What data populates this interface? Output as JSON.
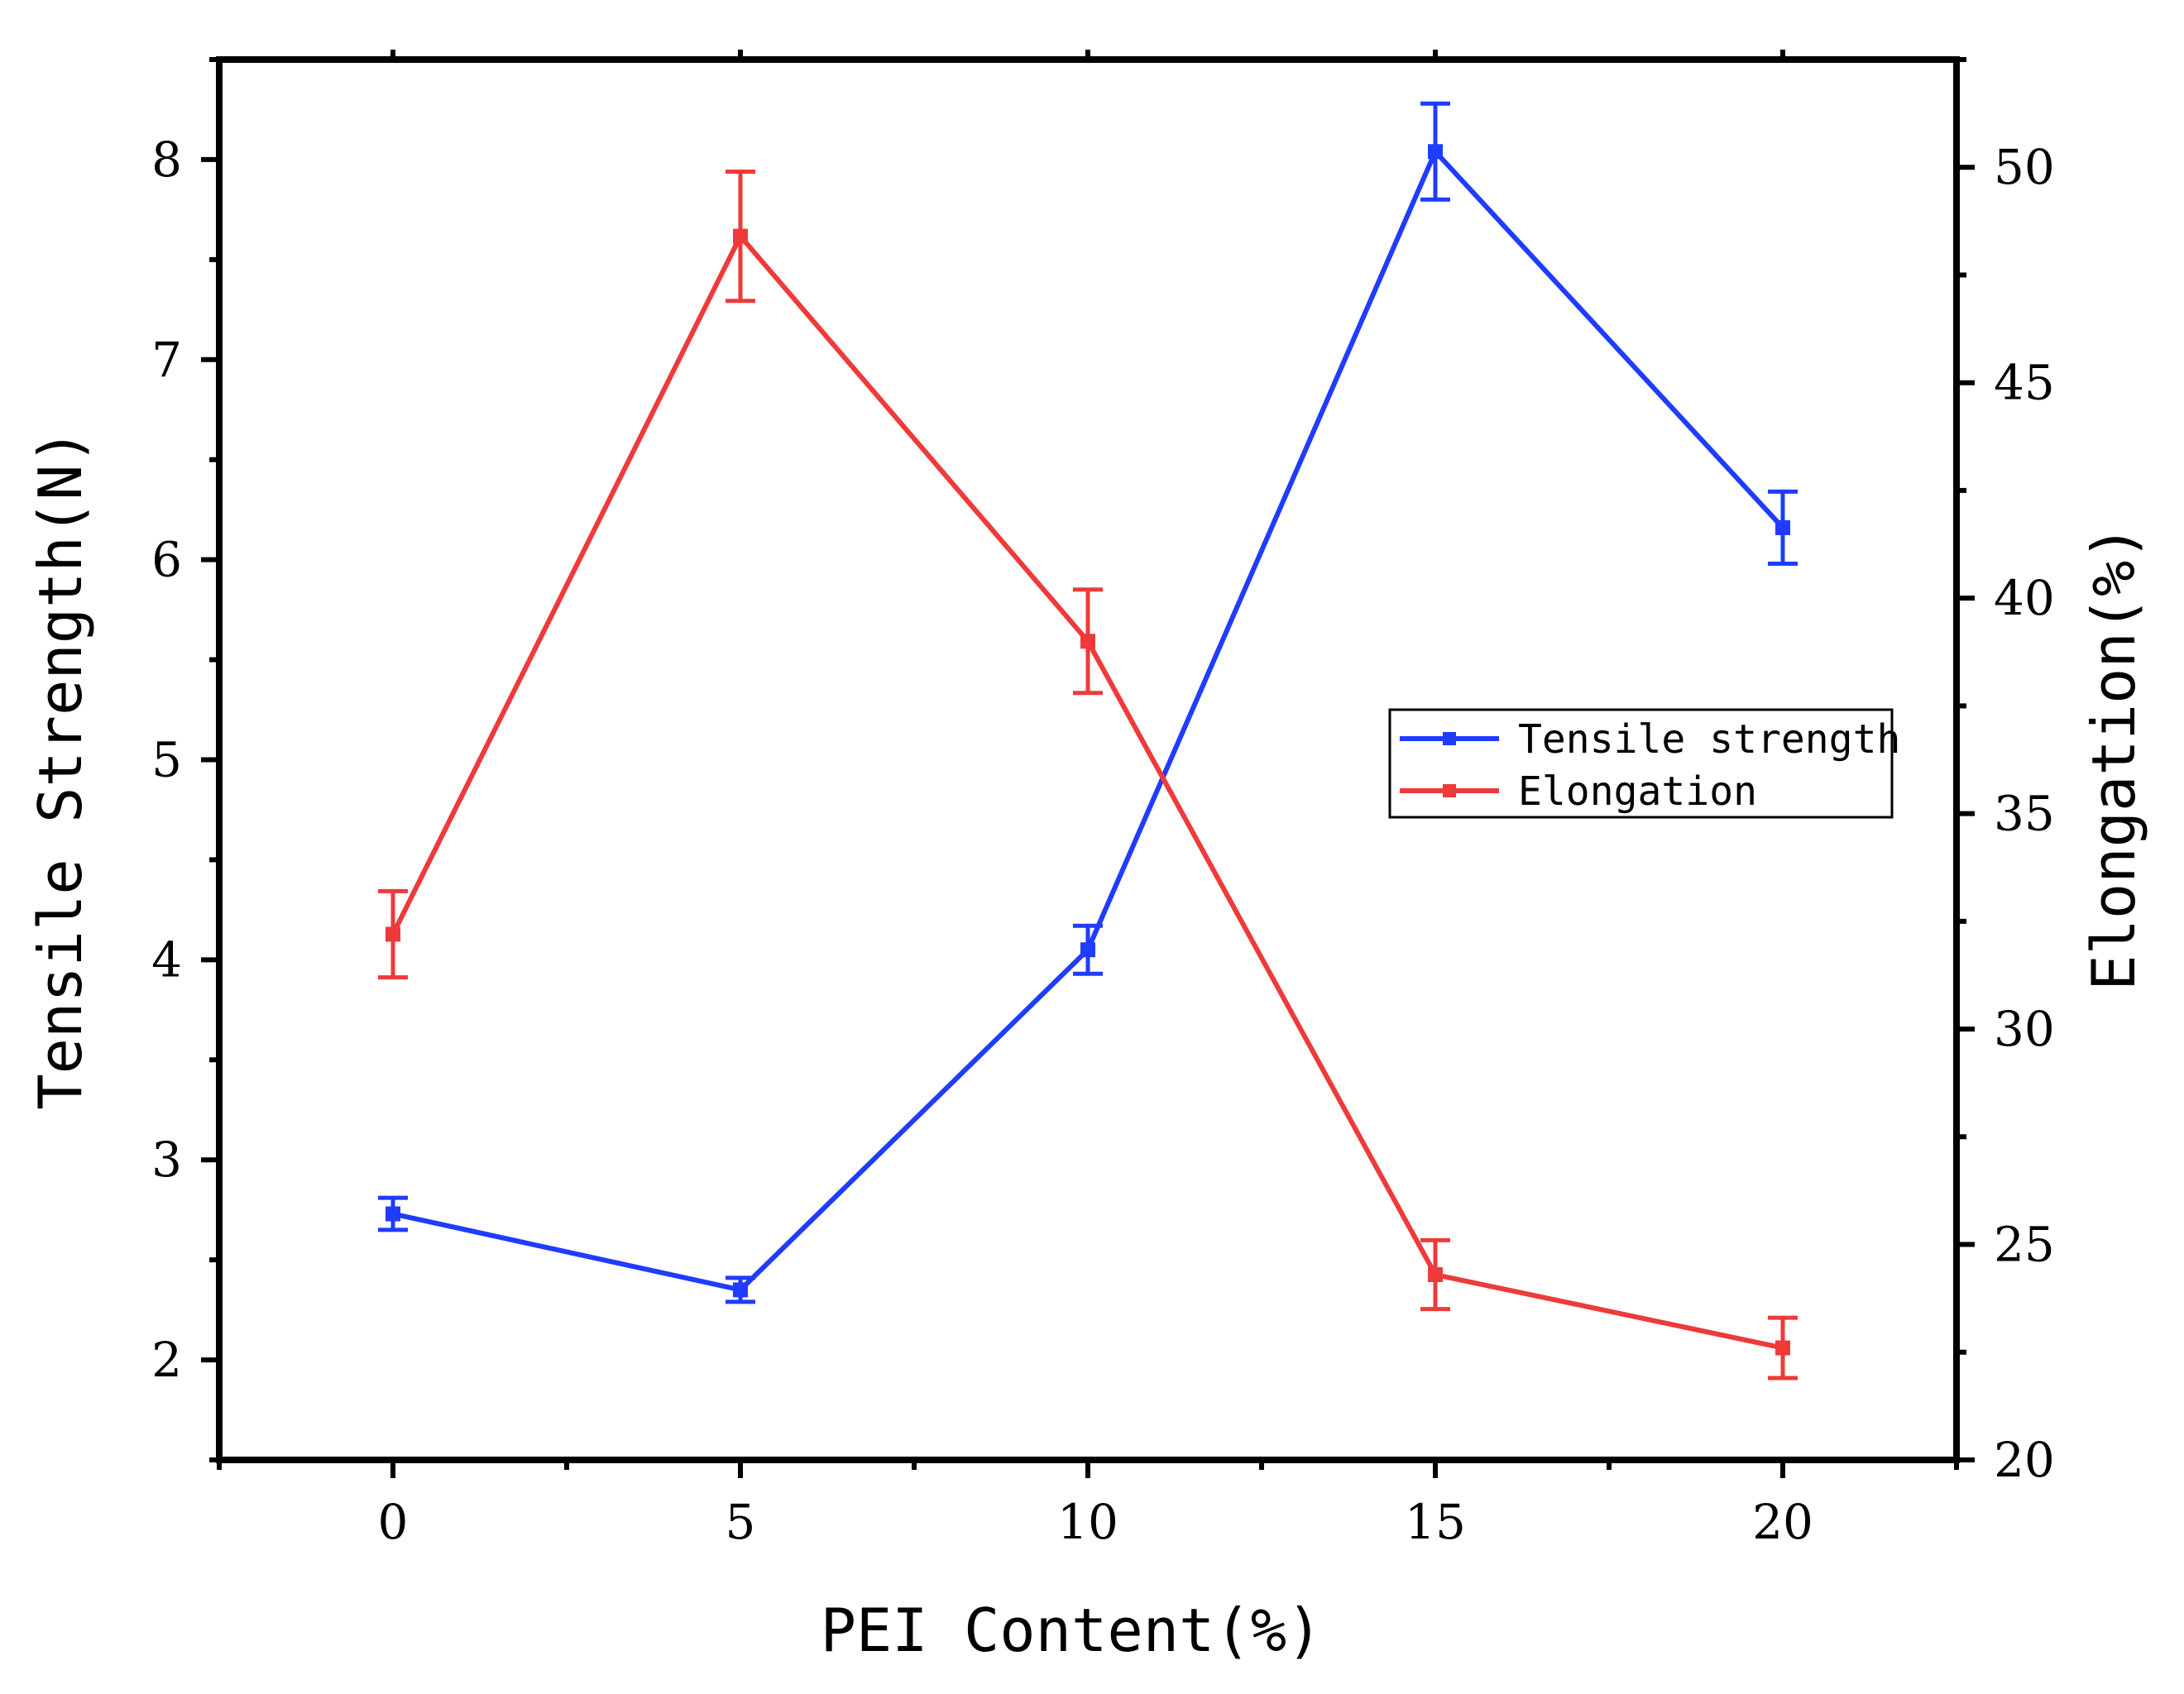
{
  "chart_data": {
    "type": "line",
    "title": "",
    "x": [
      0,
      5,
      10,
      15,
      20
    ],
    "xlabel": "PEI Content(%)",
    "xlim": [
      -2.5,
      22.5
    ],
    "xticks": [
      0,
      5,
      10,
      15,
      20
    ],
    "ylabel_left": "Tensile Strength(N)",
    "ylim_left": [
      1.5,
      8.5
    ],
    "yticks_left": [
      2,
      3,
      4,
      5,
      6,
      7,
      8
    ],
    "ylabel_right": "Elongation(%)",
    "ylim_right": [
      20,
      52.5
    ],
    "yticks_right": [
      20,
      25,
      30,
      35,
      40,
      45,
      50
    ],
    "grid": false,
    "legend_position": "center-right",
    "series": [
      {
        "name": "Tensile strength",
        "axis": "left",
        "color": "#1f3cff",
        "values": [
          2.73,
          2.35,
          4.05,
          8.04,
          6.16
        ],
        "errors": [
          0.08,
          0.06,
          0.12,
          0.24,
          0.18
        ]
      },
      {
        "name": "Elongation",
        "axis": "right",
        "color": "#ee3a3a",
        "values": [
          32.2,
          48.4,
          39.0,
          24.3,
          22.6
        ],
        "errors": [
          1.0,
          1.5,
          1.2,
          0.8,
          0.7
        ]
      }
    ]
  }
}
